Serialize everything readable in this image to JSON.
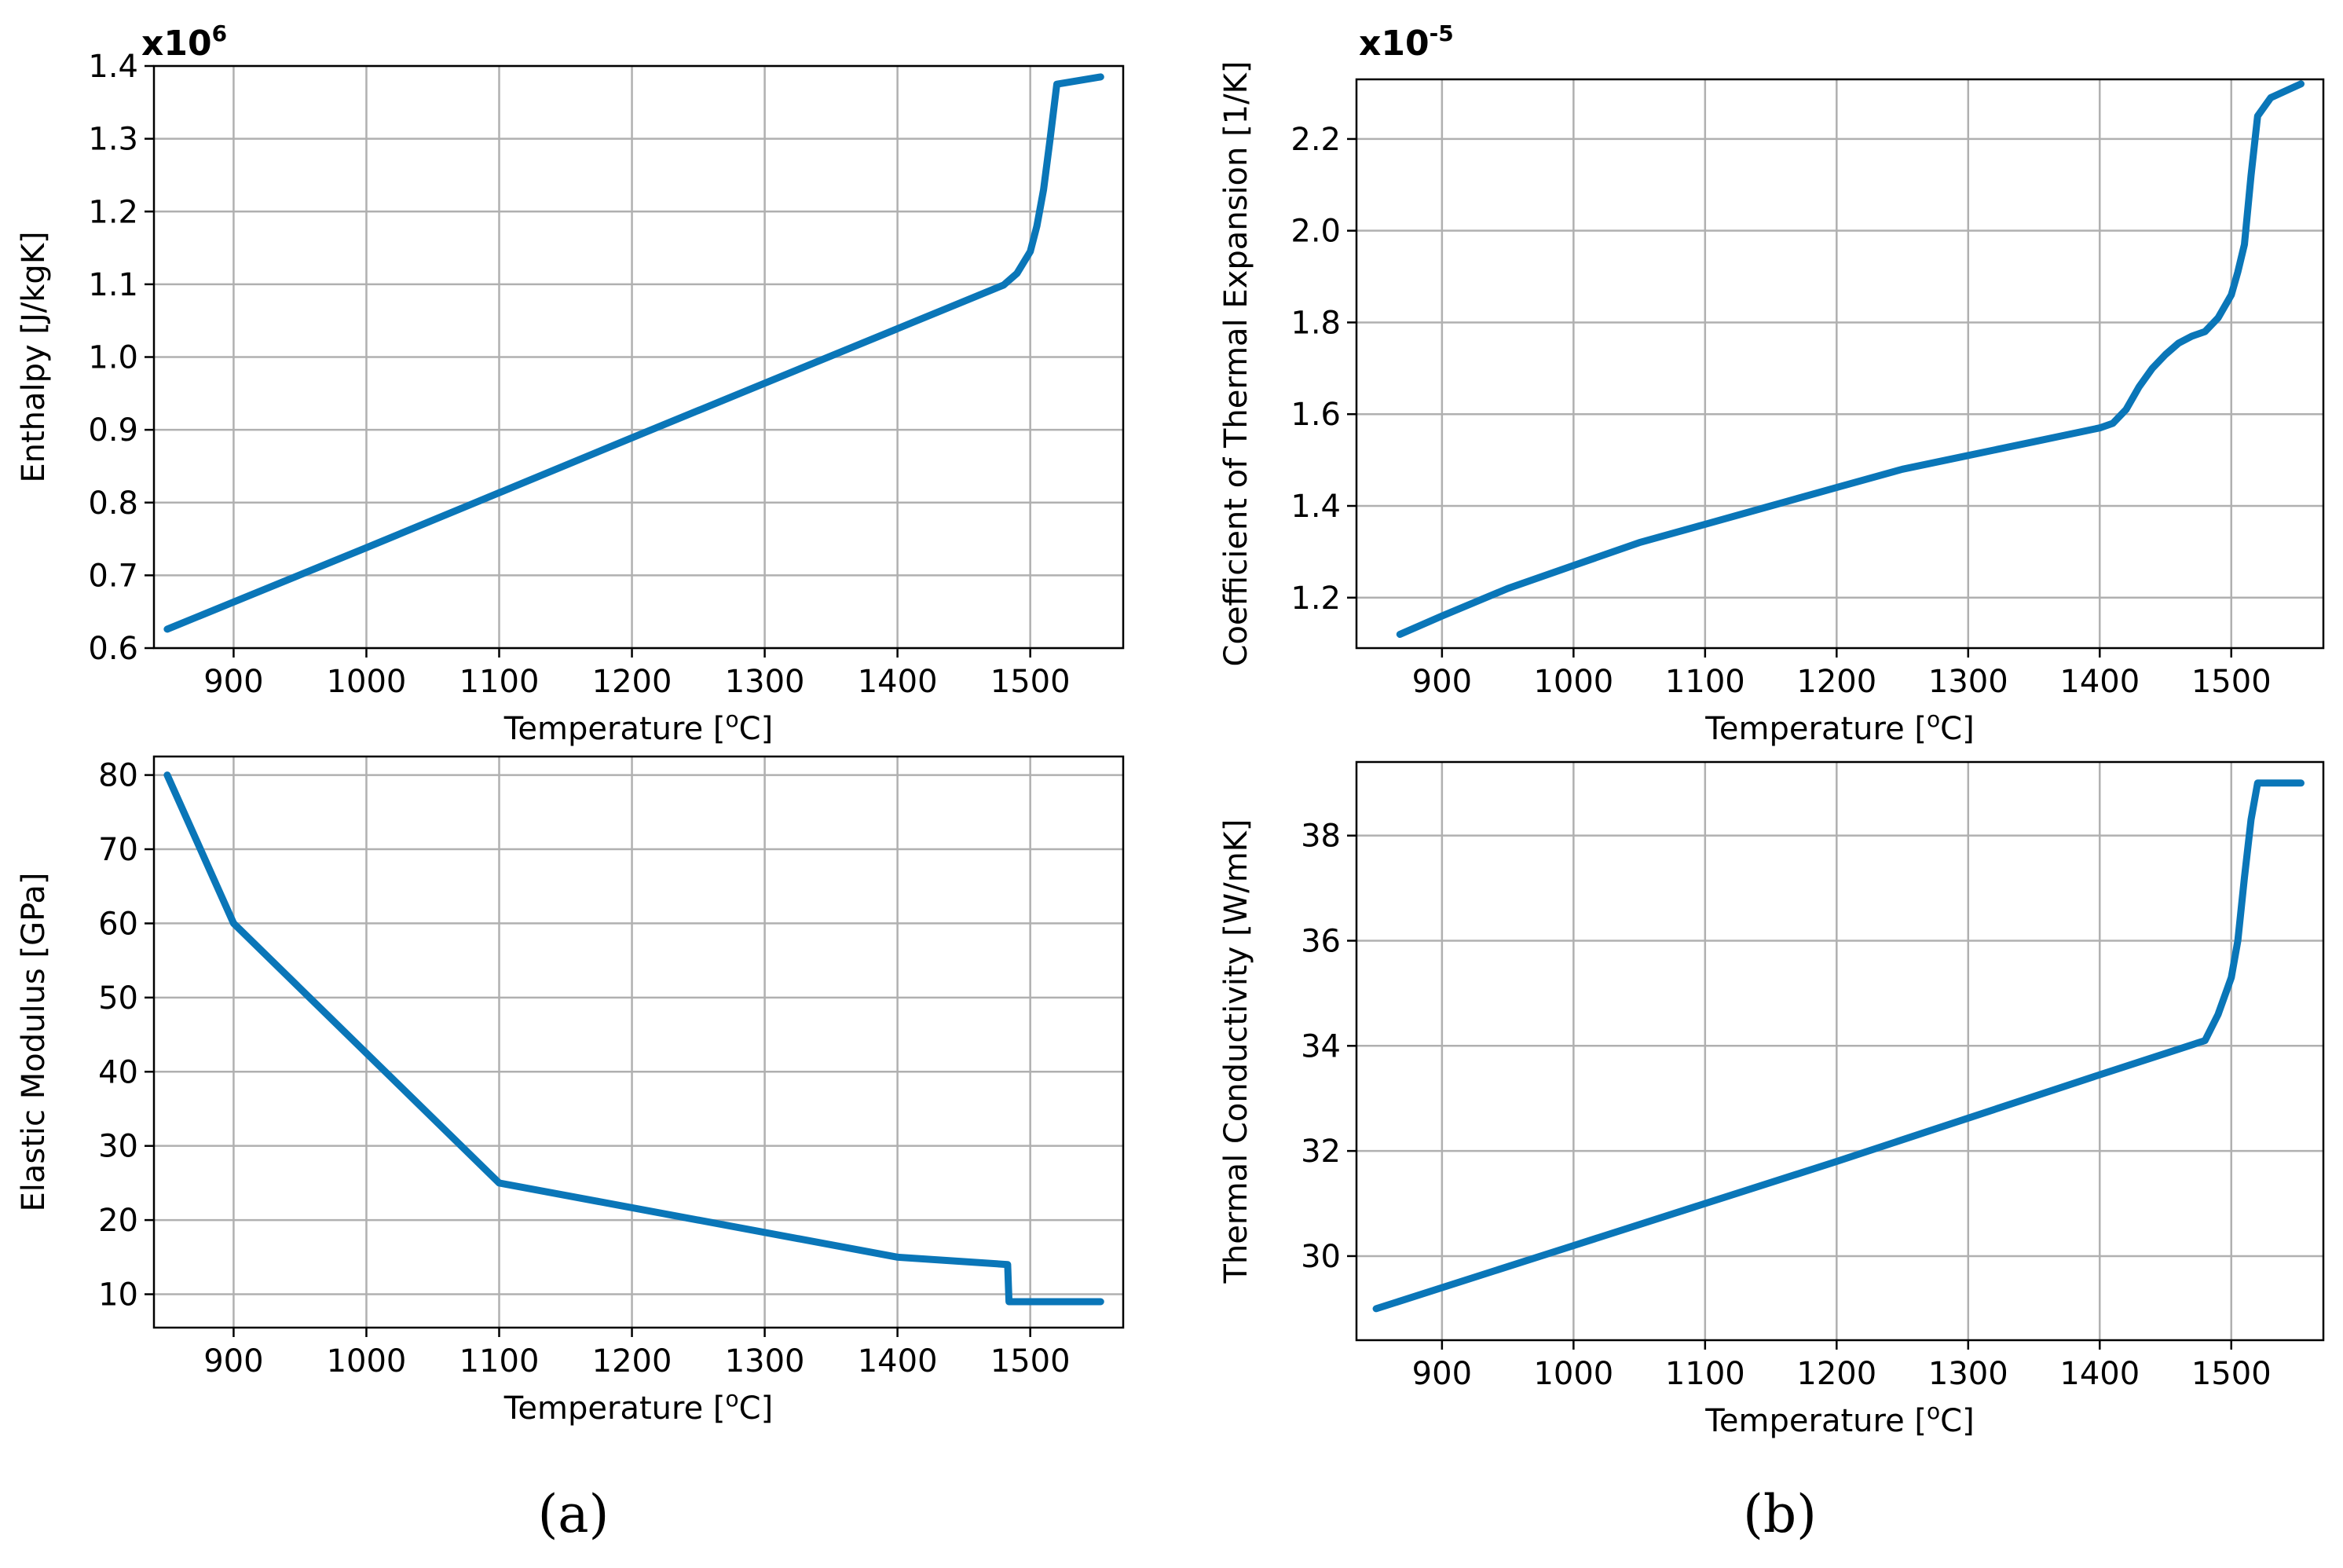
{
  "chart_data": [
    {
      "type": "line",
      "panel": "a",
      "position": "top-left",
      "xlabel": "Temperature [oC]",
      "ylabel": "Enthalpy [J/kgK]",
      "y_multiplier": "x10^6",
      "xlim": [
        840,
        1570
      ],
      "ylim": [
        0.6,
        1.4
      ],
      "xticks": [
        900,
        1000,
        1100,
        1200,
        1300,
        1400,
        1500
      ],
      "yticks": [
        0.6,
        0.7,
        0.8,
        0.9,
        1.0,
        1.1,
        1.2,
        1.3,
        1.4
      ],
      "ytick_labels": [
        "0.6",
        "0.7",
        "0.8",
        "0.9",
        "1.0",
        "1.1",
        "1.2",
        "1.3",
        "1.4"
      ],
      "grid": true,
      "series": [
        {
          "name": "Enthalpy",
          "color": "#0a76b8",
          "x": [
            850,
            1000,
            1200,
            1400,
            1480,
            1490,
            1500,
            1505,
            1510,
            1515,
            1520,
            1553
          ],
          "y": [
            0.626,
            0.738,
            0.889,
            1.039,
            1.099,
            1.115,
            1.145,
            1.18,
            1.23,
            1.3,
            1.375,
            1.385
          ]
        }
      ]
    },
    {
      "type": "line",
      "panel": "b",
      "position": "top-right",
      "xlabel": "Temperature [oC]",
      "ylabel": "Coefficient of Thermal Expansion [1/K]",
      "y_multiplier": "x10^-5",
      "xlim": [
        835,
        1570
      ],
      "ylim": [
        1.09,
        2.33
      ],
      "xticks": [
        900,
        1000,
        1100,
        1200,
        1300,
        1400,
        1500
      ],
      "yticks": [
        1.2,
        1.4,
        1.6,
        1.8,
        2.0,
        2.2
      ],
      "ytick_labels": [
        "1.2",
        "1.4",
        "1.6",
        "1.8",
        "2.0",
        "2.2"
      ],
      "grid": true,
      "series": [
        {
          "name": "Coefficient of Thermal Expansion",
          "color": "#0a76b8",
          "x": [
            868,
            900,
            950,
            1000,
            1050,
            1100,
            1150,
            1200,
            1250,
            1300,
            1350,
            1400,
            1410,
            1420,
            1430,
            1440,
            1450,
            1460,
            1470,
            1480,
            1490,
            1500,
            1505,
            1510,
            1515,
            1520,
            1530,
            1553
          ],
          "y": [
            1.12,
            1.16,
            1.22,
            1.27,
            1.32,
            1.36,
            1.4,
            1.44,
            1.48,
            1.51,
            1.54,
            1.57,
            1.58,
            1.61,
            1.66,
            1.7,
            1.73,
            1.755,
            1.77,
            1.78,
            1.81,
            1.86,
            1.91,
            1.97,
            2.12,
            2.25,
            2.29,
            2.32
          ]
        }
      ]
    },
    {
      "type": "line",
      "panel": "a",
      "position": "bottom-left",
      "xlabel": "Temperature [oC]",
      "ylabel": "Elastic Modulus [GPa]",
      "xlim": [
        840,
        1570
      ],
      "ylim": [
        5.5,
        82.5
      ],
      "xticks": [
        900,
        1000,
        1100,
        1200,
        1300,
        1400,
        1500
      ],
      "yticks": [
        10,
        20,
        30,
        40,
        50,
        60,
        70,
        80
      ],
      "ytick_labels": [
        "10",
        "20",
        "30",
        "40",
        "50",
        "60",
        "70",
        "80"
      ],
      "grid": true,
      "series": [
        {
          "name": "Elastic Modulus",
          "color": "#0a76b8",
          "x": [
            850,
            900,
            1100,
            1400,
            1483,
            1484,
            1553
          ],
          "y": [
            80,
            60,
            25,
            15,
            14,
            9,
            9
          ]
        }
      ]
    },
    {
      "type": "line",
      "panel": "b",
      "position": "bottom-right",
      "xlabel": "Temperature [oC]",
      "ylabel": "Thermal Conductivity [W/mK]",
      "xlim": [
        835,
        1570
      ],
      "ylim": [
        28.4,
        39.4
      ],
      "xticks": [
        900,
        1000,
        1100,
        1200,
        1300,
        1400,
        1500
      ],
      "yticks": [
        30,
        32,
        34,
        36,
        38
      ],
      "ytick_labels": [
        "30",
        "32",
        "34",
        "36",
        "38"
      ],
      "grid": true,
      "series": [
        {
          "name": "Thermal Conductivity",
          "color": "#0a76b8",
          "x": [
            850,
            1000,
            1200,
            1400,
            1480,
            1490,
            1500,
            1505,
            1510,
            1515,
            1520,
            1553
          ],
          "y": [
            29.0,
            30.2,
            31.8,
            33.45,
            34.1,
            34.6,
            35.3,
            36.0,
            37.2,
            38.3,
            39.0,
            39.0
          ]
        }
      ]
    }
  ],
  "xtick_labels": [
    "900",
    "1000",
    "1100",
    "1200",
    "1300",
    "1400",
    "1500"
  ],
  "labels": {
    "xlabel_main": "Temperature [",
    "xlabel_sup": "o",
    "xlabel_tail": "C]",
    "mult_a_base": "x10",
    "mult_a_exp": "6",
    "mult_b_base": "x10",
    "mult_b_exp": "-5",
    "panel_a": "(a)",
    "panel_b": "(b)"
  }
}
